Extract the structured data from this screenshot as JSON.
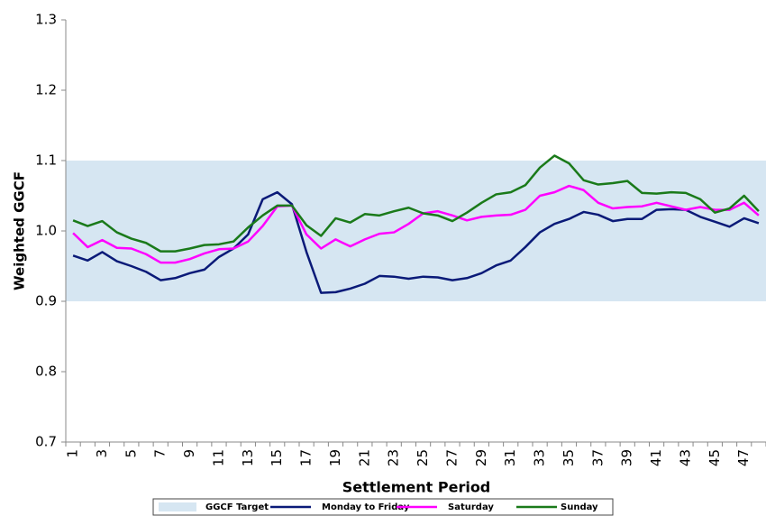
{
  "chart_data": {
    "type": "line",
    "x_label": "Settlement Period",
    "y_label": "Weighted GGCF",
    "categories": [
      "1",
      null,
      "3",
      null,
      "5",
      null,
      "7",
      null,
      "9",
      null,
      "11",
      null,
      "13",
      null,
      "15",
      null,
      "17",
      null,
      "19",
      null,
      "21",
      null,
      "23",
      null,
      "25",
      null,
      "27",
      null,
      "29",
      null,
      "31",
      null,
      "33",
      null,
      "35",
      null,
      "37",
      null,
      "39",
      null,
      "41",
      null,
      "43",
      null,
      "45",
      null,
      "47",
      null
    ],
    "target_band": {
      "name": "GGCF Target",
      "range": [
        0.9,
        1.1
      ],
      "color": "#d6e6f2"
    },
    "series": [
      {
        "name": "Monday to Friday",
        "color": "#0a1a78",
        "values": [
          0.965,
          0.958,
          0.97,
          0.957,
          0.95,
          0.942,
          0.93,
          0.933,
          0.94,
          0.945,
          0.963,
          0.975,
          0.995,
          1.045,
          1.055,
          1.038,
          0.97,
          0.912,
          0.913,
          0.918,
          0.925,
          0.936,
          0.935,
          0.932,
          0.935,
          0.934,
          0.93,
          0.933,
          0.94,
          0.951,
          0.958,
          0.977,
          0.998,
          1.01,
          1.017,
          1.027,
          1.023,
          1.014,
          1.017,
          1.017,
          1.03,
          1.031,
          1.03,
          1.02,
          1.013,
          1.006,
          1.018,
          1.011
        ]
      },
      {
        "name": "Saturday",
        "color": "#ff00ff",
        "values": [
          0.997,
          0.977,
          0.987,
          0.976,
          0.975,
          0.967,
          0.955,
          0.955,
          0.96,
          0.968,
          0.974,
          0.975,
          0.985,
          1.007,
          1.035,
          1.036,
          0.995,
          0.975,
          0.988,
          0.978,
          0.988,
          0.996,
          0.998,
          1.01,
          1.025,
          1.028,
          1.022,
          1.015,
          1.02,
          1.022,
          1.023,
          1.03,
          1.05,
          1.055,
          1.064,
          1.058,
          1.04,
          1.032,
          1.034,
          1.035,
          1.04,
          1.035,
          1.03,
          1.034,
          1.03,
          1.03,
          1.04,
          1.022
        ]
      },
      {
        "name": "Sunday",
        "color": "#1a7a1a",
        "values": [
          1.015,
          1.007,
          1.014,
          0.998,
          0.989,
          0.983,
          0.971,
          0.971,
          0.975,
          0.98,
          0.981,
          0.985,
          1.005,
          1.022,
          1.036,
          1.036,
          1.008,
          0.993,
          1.018,
          1.012,
          1.024,
          1.022,
          1.028,
          1.033,
          1.025,
          1.022,
          1.014,
          1.026,
          1.04,
          1.052,
          1.055,
          1.065,
          1.09,
          1.107,
          1.096,
          1.072,
          1.066,
          1.068,
          1.071,
          1.054,
          1.053,
          1.055,
          1.054,
          1.045,
          1.026,
          1.032,
          1.05,
          1.028
        ]
      }
    ],
    "ylim": [
      0.7,
      1.3
    ],
    "yticks": [
      0.7,
      0.8,
      0.9,
      {
        "value": 1,
        "label": "1.0"
      },
      1.1,
      1.2,
      1.3
    ],
    "grid": false
  }
}
